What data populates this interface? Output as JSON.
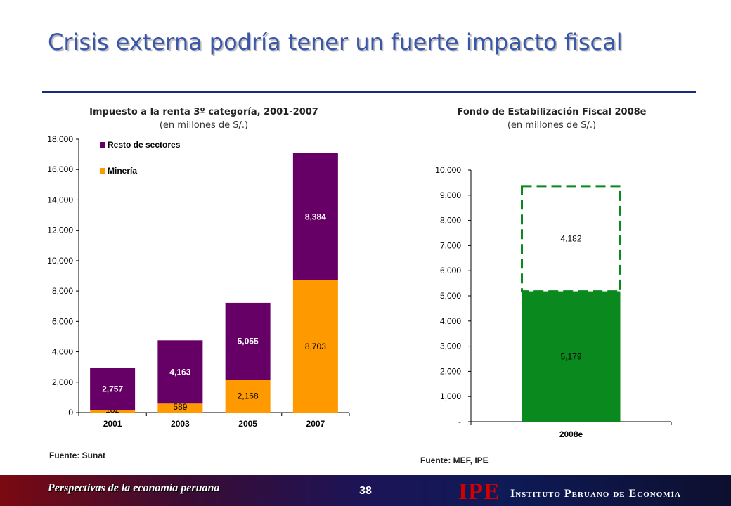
{
  "slide": {
    "title": "Crisis externa podría tener un fuerte impacto fiscal",
    "footer_text": "Perspectivas de la economía peruana",
    "page_number": "38",
    "logo_text": "IPE",
    "organization": "Instituto Peruano de Economía",
    "colors": {
      "title": "#3a56a8",
      "rule": "#1e2b7a",
      "resto": "#660066",
      "mineria": "#ff9900",
      "fondo": "#0a8a1e",
      "logo": "#d40000"
    }
  },
  "left_chart": {
    "source": "Fuente: Sunat"
  },
  "right_chart": {
    "source": "Fuente: MEF, IPE"
  },
  "chart_data": [
    {
      "type": "bar",
      "stacked": true,
      "title": "Impuesto a la renta 3º categoría, 2001-2007",
      "subtitle": "(en millones de S/.)",
      "categories": [
        "2001",
        "2003",
        "2005",
        "2007"
      ],
      "series": [
        {
          "name": "Minería",
          "color": "#ff9900",
          "values": [
            182,
            589,
            2168,
            8703
          ],
          "labels": [
            "182",
            "589",
            "2,168",
            "8,703"
          ]
        },
        {
          "name": "Resto de sectores",
          "color": "#660066",
          "values": [
            2757,
            4163,
            5055,
            8384
          ],
          "labels": [
            "2,757",
            "4,163",
            "5,055",
            "8,384"
          ]
        }
      ],
      "ylim": [
        0,
        18000
      ],
      "yticks": [
        0,
        2000,
        4000,
        6000,
        8000,
        10000,
        12000,
        14000,
        16000,
        18000
      ],
      "ytick_labels": [
        "0",
        "2,000",
        "4,000",
        "6,000",
        "8,000",
        "10,000",
        "12,000",
        "14,000",
        "16,000",
        "18,000"
      ],
      "legend": [
        "Resto de sectores",
        "Minería"
      ],
      "legend_position": "top-left",
      "grid": false
    },
    {
      "type": "bar",
      "stacked": true,
      "title": "Fondo de Estabilización Fiscal 2008e",
      "subtitle": "(en millones de S/.)",
      "categories": [
        "2008e"
      ],
      "series": [
        {
          "color": "#0a8a1e",
          "values": [
            5179
          ],
          "labels": [
            "5,179"
          ],
          "style": "solid"
        },
        {
          "color": "#0a8a1e",
          "values": [
            4182
          ],
          "labels": [
            "4,182"
          ],
          "style": "dashed-outline"
        }
      ],
      "ylim": [
        0,
        10000
      ],
      "yticks": [
        0,
        1000,
        2000,
        3000,
        4000,
        5000,
        6000,
        7000,
        8000,
        9000,
        10000
      ],
      "ytick_labels": [
        "-",
        "1,000",
        "2,000",
        "3,000",
        "4,000",
        "5,000",
        "6,000",
        "7,000",
        "8,000",
        "9,000",
        "10,000"
      ],
      "grid": false
    }
  ]
}
